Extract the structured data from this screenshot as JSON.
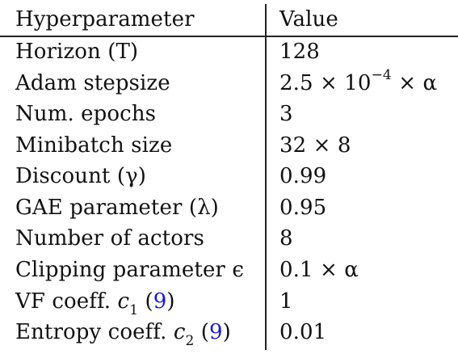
{
  "table": {
    "headers": [
      "Hyperparameter",
      "Value"
    ],
    "rows": [
      {
        "name": "Horizon (T)",
        "value": "128"
      },
      {
        "name": "Adam stepsize",
        "value": "2.5 × 10",
        "value_exp": "−4",
        "value_tail": " × α"
      },
      {
        "name": "Num. epochs",
        "value": "3"
      },
      {
        "name": "Minibatch size",
        "value": "32 × 8"
      },
      {
        "name": "Discount (γ)",
        "value": "0.99"
      },
      {
        "name": "GAE parameter (λ)",
        "value": "0.95"
      },
      {
        "name": "Number of actors",
        "value": "8"
      },
      {
        "name": "Clipping parameter ϵ",
        "value": "0.1 × α"
      },
      {
        "name_pre": "VF coeff. ",
        "name_sym": "c",
        "name_sub": "1",
        "name_open": " (",
        "name_ref": "9",
        "name_close": ")",
        "value": "1"
      },
      {
        "name_pre": "Entropy coeff. ",
        "name_sym": "c",
        "name_sub": "2",
        "name_open": " (",
        "name_ref": "9",
        "name_close": ")",
        "value": "0.01"
      }
    ]
  }
}
